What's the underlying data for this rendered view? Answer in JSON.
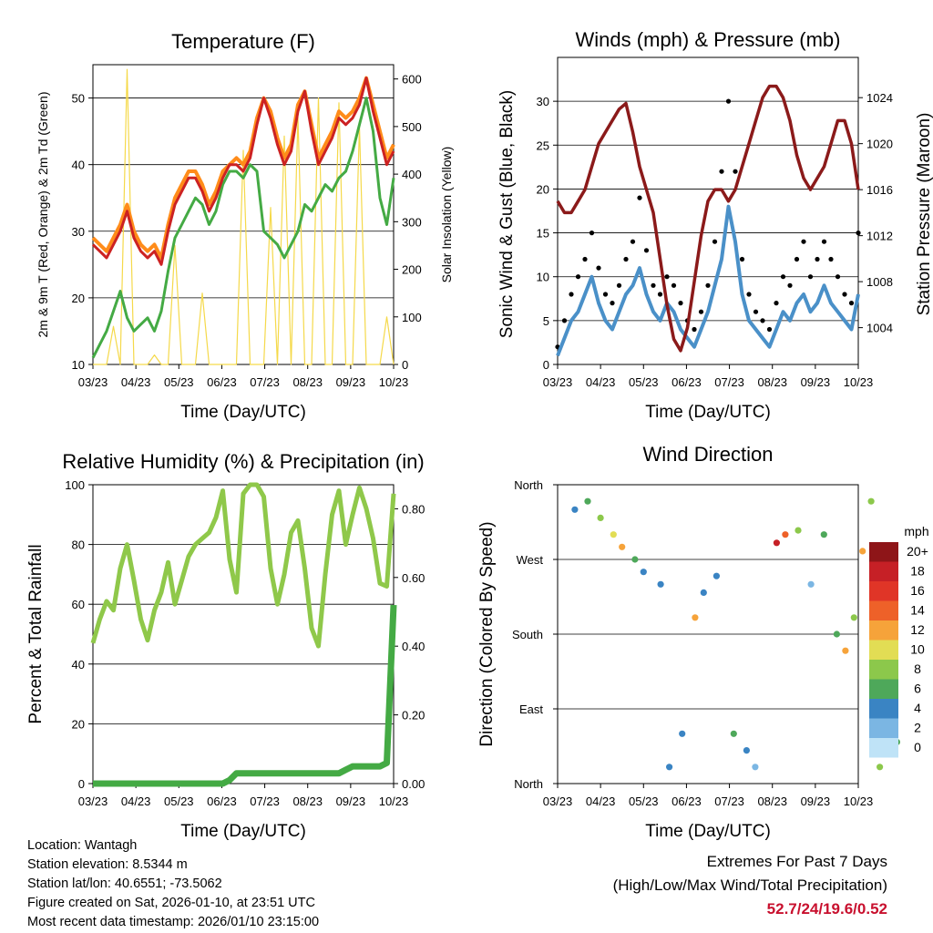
{
  "chart_data": [
    {
      "type": "line",
      "title": "Temperature (F)",
      "xlabel": "Time (Day/UTC)",
      "ylabel_left": "2m & 9m T (Red, Orange) & 2m Td (Green)",
      "ylabel_right": "Solar Insolation (Yellow)",
      "x_ticks": [
        "03/23",
        "04/23",
        "05/23",
        "06/23",
        "07/23",
        "08/23",
        "09/23",
        "10/23"
      ],
      "ylim_left": [
        10,
        55
      ],
      "yticks_left": [
        10,
        20,
        30,
        40,
        50
      ],
      "ylim_right": [
        0,
        630
      ],
      "yticks_right": [
        0,
        100,
        200,
        300,
        400,
        500,
        600
      ],
      "series": [
        {
          "name": "2m T",
          "color": "#cc2222",
          "axis": "left",
          "values": [
            28,
            27,
            26,
            28,
            30,
            33,
            29,
            27,
            26,
            27,
            25,
            30,
            34,
            36,
            38,
            38,
            36,
            33,
            35,
            38,
            40,
            40,
            39,
            41,
            46,
            50,
            47,
            43,
            40,
            42,
            48,
            51,
            45,
            40,
            42,
            44,
            47,
            46,
            47,
            49,
            53,
            48,
            44,
            40,
            42
          ]
        },
        {
          "name": "9m T",
          "color": "#ff8c1a",
          "axis": "left",
          "values": [
            29,
            28,
            27,
            29,
            31,
            34,
            30,
            28,
            27,
            28,
            26,
            31,
            35,
            37,
            39,
            39,
            37,
            34,
            36,
            39,
            40,
            41,
            40,
            42,
            47,
            50,
            48,
            44,
            41,
            43,
            49,
            51,
            46,
            41,
            43,
            45,
            48,
            47,
            48,
            50,
            53,
            49,
            45,
            41,
            43
          ]
        },
        {
          "name": "2m Td",
          "color": "#44aa44",
          "axis": "left",
          "values": [
            11,
            13,
            15,
            18,
            21,
            17,
            15,
            16,
            17,
            15,
            18,
            24,
            29,
            31,
            33,
            35,
            34,
            31,
            33,
            37,
            39,
            39,
            38,
            40,
            39,
            30,
            29,
            28,
            26,
            28,
            30,
            34,
            33,
            35,
            37,
            36,
            38,
            39,
            42,
            46,
            50,
            45,
            35,
            31,
            38
          ]
        },
        {
          "name": "Solar Insolation",
          "color": "#f5d94a",
          "axis": "right",
          "values": [
            0,
            0,
            0,
            80,
            0,
            620,
            0,
            0,
            0,
            20,
            0,
            0,
            250,
            0,
            0,
            0,
            150,
            0,
            0,
            0,
            0,
            0,
            450,
            0,
            0,
            0,
            330,
            0,
            480,
            0,
            520,
            0,
            0,
            560,
            0,
            0,
            550,
            0,
            0,
            500,
            0,
            0,
            0,
            100,
            0
          ]
        }
      ]
    },
    {
      "type": "line",
      "title": "Winds (mph) & Pressure (mb)",
      "xlabel": "Time (Day/UTC)",
      "ylabel_left": "Sonic Wind & Gust (Blue, Black)",
      "ylabel_right": "Station Pressure (Maroon)",
      "x_ticks": [
        "03/23",
        "04/23",
        "05/23",
        "06/23",
        "07/23",
        "08/23",
        "09/23",
        "10/23"
      ],
      "ylim_left": [
        0,
        35
      ],
      "yticks_left": [
        0,
        5,
        10,
        15,
        20,
        25,
        30
      ],
      "ylim_right": [
        1000.8,
        1027.5
      ],
      "yticks_right": [
        1004,
        1008,
        1012,
        1016,
        1020,
        1024
      ],
      "series": [
        {
          "name": "Sonic Wind",
          "color": "#4a90c8",
          "axis": "left",
          "values": [
            1,
            3,
            5,
            6,
            8,
            10,
            7,
            5,
            4,
            6,
            8,
            9,
            11,
            8,
            6,
            5,
            7,
            6,
            4,
            3,
            2,
            4,
            6,
            9,
            12,
            18,
            14,
            8,
            5,
            4,
            3,
            2,
            4,
            6,
            5,
            7,
            8,
            6,
            7,
            9,
            7,
            6,
            5,
            4,
            8
          ]
        },
        {
          "name": "Gust",
          "color": "#000000",
          "axis": "left",
          "values": [
            2,
            5,
            8,
            10,
            12,
            15,
            11,
            8,
            7,
            9,
            12,
            14,
            19,
            13,
            9,
            8,
            10,
            9,
            7,
            5,
            4,
            6,
            9,
            14,
            22,
            30,
            22,
            12,
            8,
            6,
            5,
            4,
            7,
            10,
            9,
            12,
            14,
            10,
            12,
            14,
            12,
            10,
            8,
            7,
            15
          ]
        },
        {
          "name": "Station Pressure",
          "color": "#8b1a1a",
          "axis": "right",
          "values": [
            1015,
            1014,
            1014,
            1015,
            1016,
            1018,
            1020,
            1021,
            1022,
            1023,
            1023.5,
            1021,
            1018,
            1016,
            1014,
            1010,
            1006,
            1003,
            1002,
            1004,
            1008,
            1012,
            1015,
            1016,
            1016,
            1015,
            1016,
            1018,
            1020,
            1022,
            1024,
            1025,
            1025,
            1024,
            1022,
            1019,
            1017,
            1016,
            1017,
            1018,
            1020,
            1022,
            1022,
            1020,
            1016
          ]
        }
      ]
    },
    {
      "type": "line",
      "title": "Relative Humidity (%) & Precipitation (in)",
      "xlabel": "Time (Day/UTC)",
      "ylabel_left": "Percent & Total Rainfall",
      "x_ticks": [
        "03/23",
        "04/23",
        "05/23",
        "06/23",
        "07/23",
        "08/23",
        "09/23",
        "10/23"
      ],
      "ylim_left": [
        0,
        100
      ],
      "yticks_left": [
        0,
        20,
        40,
        60,
        80,
        100
      ],
      "ylim_right": [
        0,
        0.87
      ],
      "yticks_right": [
        "0.00",
        "0.20",
        "0.40",
        "0.60",
        "0.80"
      ],
      "series": [
        {
          "name": "Relative Humidity",
          "color": "#8fc84a",
          "axis": "left",
          "values": [
            47,
            55,
            61,
            58,
            72,
            80,
            68,
            55,
            48,
            58,
            64,
            74,
            60,
            68,
            76,
            80,
            82,
            84,
            89,
            98,
            75,
            64,
            97,
            100,
            100,
            96,
            72,
            60,
            70,
            84,
            88,
            72,
            52,
            46,
            70,
            90,
            98,
            80,
            90,
            99,
            92,
            82,
            67,
            66,
            97
          ]
        },
        {
          "name": "Total Precipitation",
          "color": "#44aa44",
          "axis": "right",
          "values": [
            0,
            0,
            0,
            0,
            0,
            0,
            0,
            0,
            0,
            0,
            0,
            0,
            0,
            0,
            0,
            0,
            0,
            0,
            0,
            0,
            0.01,
            0.03,
            0.03,
            0.03,
            0.03,
            0.03,
            0.03,
            0.03,
            0.03,
            0.03,
            0.03,
            0.03,
            0.03,
            0.03,
            0.03,
            0.03,
            0.03,
            0.04,
            0.05,
            0.05,
            0.05,
            0.05,
            0.05,
            0.06,
            0.52
          ]
        }
      ]
    },
    {
      "type": "scatter",
      "title": "Wind Direction",
      "xlabel": "Time (Day/UTC)",
      "ylabel": "Direction (Colored By Speed)",
      "x_ticks": [
        "03/23",
        "04/23",
        "05/23",
        "06/23",
        "07/23",
        "08/23",
        "09/23",
        "10/23"
      ],
      "ylim": [
        0,
        360
      ],
      "yticks": [
        "North",
        "East",
        "South",
        "West",
        "North"
      ],
      "colorbar": {
        "title": "mph",
        "labels": [
          "20+",
          "18",
          "16",
          "14",
          "12",
          "10",
          "8",
          "6",
          "4",
          "2",
          "0"
        ],
        "colors": [
          "#8e1518",
          "#c62026",
          "#e03527",
          "#ee6129",
          "#f6a33a",
          "#e2dd54",
          "#8cc84b",
          "#4ea85a",
          "#3a84c3",
          "#7bb6e3",
          "#bfe3f7"
        ]
      },
      "points": [
        {
          "x": 0.4,
          "dir": 330,
          "speed": 4
        },
        {
          "x": 0.7,
          "dir": 340,
          "speed": 6
        },
        {
          "x": 1.0,
          "dir": 320,
          "speed": 8
        },
        {
          "x": 1.3,
          "dir": 300,
          "speed": 10
        },
        {
          "x": 1.5,
          "dir": 285,
          "speed": 12
        },
        {
          "x": 1.8,
          "dir": 270,
          "speed": 6
        },
        {
          "x": 2.0,
          "dir": 255,
          "speed": 4
        },
        {
          "x": 2.4,
          "dir": 240,
          "speed": 4
        },
        {
          "x": 2.6,
          "dir": 20,
          "speed": 4
        },
        {
          "x": 2.9,
          "dir": 60,
          "speed": 4
        },
        {
          "x": 3.2,
          "dir": 200,
          "speed": 12
        },
        {
          "x": 3.4,
          "dir": 230,
          "speed": 4
        },
        {
          "x": 3.7,
          "dir": 250,
          "speed": 4
        },
        {
          "x": 4.1,
          "dir": 60,
          "speed": 6
        },
        {
          "x": 4.4,
          "dir": 40,
          "speed": 4
        },
        {
          "x": 4.6,
          "dir": 20,
          "speed": 2
        },
        {
          "x": 5.1,
          "dir": 290,
          "speed": 18
        },
        {
          "x": 5.3,
          "dir": 300,
          "speed": 14
        },
        {
          "x": 5.6,
          "dir": 305,
          "speed": 8
        },
        {
          "x": 5.9,
          "dir": 240,
          "speed": 2
        },
        {
          "x": 6.2,
          "dir": 300,
          "speed": 6
        },
        {
          "x": 6.5,
          "dir": 180,
          "speed": 6
        },
        {
          "x": 6.7,
          "dir": 160,
          "speed": 12
        },
        {
          "x": 6.9,
          "dir": 200,
          "speed": 8
        },
        {
          "x": 7.1,
          "dir": 280,
          "speed": 12
        },
        {
          "x": 7.3,
          "dir": 340,
          "speed": 8
        },
        {
          "x": 7.5,
          "dir": 20,
          "speed": 8
        },
        {
          "x": 7.9,
          "dir": 50,
          "speed": 6
        }
      ]
    }
  ],
  "info": {
    "location": "Location: Wantagh",
    "elevation": "Station elevation: 8.5344 m",
    "latlon": "Station lat/lon: 40.6551; -73.5062",
    "created": "Figure created on Sat, 2026-01-10, at 23:51 UTC",
    "recent": "Most recent data timestamp: 2026/01/10 23:15:00"
  },
  "extremes": {
    "title": "Extremes For Past 7 Days",
    "subtitle": "(High/Low/Max Wind/Total Precipitation)",
    "values": "52.7/24/19.6/0.52"
  }
}
